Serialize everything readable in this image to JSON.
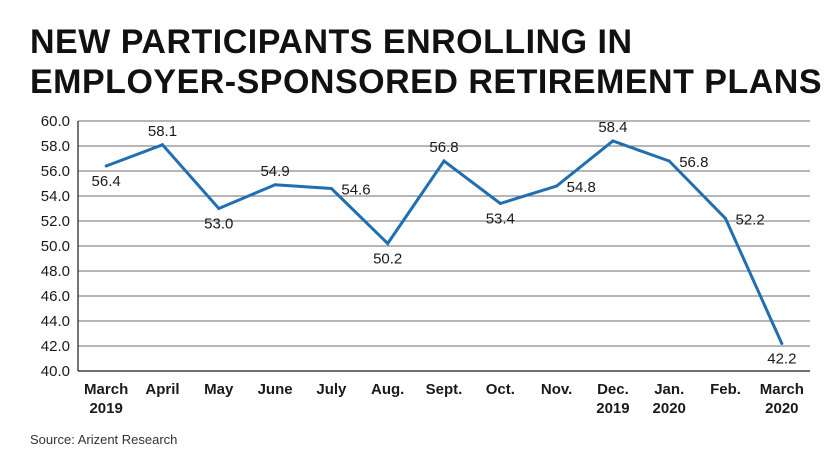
{
  "chart_data": {
    "type": "line",
    "title_lines": [
      "NEW PARTICIPANTS ENROLLING IN",
      "EMPLOYER-SPONSORED RETIREMENT PLANS"
    ],
    "categories": [
      [
        "March",
        "2019"
      ],
      [
        "April"
      ],
      [
        "May"
      ],
      [
        "June"
      ],
      [
        "July"
      ],
      [
        "Aug."
      ],
      [
        "Sept."
      ],
      [
        "Oct."
      ],
      [
        "Nov."
      ],
      [
        "Dec.",
        "2019"
      ],
      [
        "Jan.",
        "2020"
      ],
      [
        "Feb."
      ],
      [
        "March",
        "2020"
      ]
    ],
    "values": [
      56.4,
      58.1,
      53.0,
      54.9,
      54.6,
      50.2,
      56.8,
      53.4,
      54.8,
      58.4,
      56.8,
      52.2,
      42.2
    ],
    "value_labels": [
      "56.4",
      "58.1",
      "53.0",
      "54.9",
      "54.6",
      "50.2",
      "56.8",
      "53.4",
      "54.8",
      "58.4",
      "56.8",
      "52.2",
      "42.2"
    ],
    "label_positions": [
      "below",
      "above",
      "below",
      "above",
      "right",
      "below",
      "above",
      "below",
      "right",
      "above",
      "right",
      "right",
      "below"
    ],
    "yticks": [
      "40.0",
      "42.0",
      "44.0",
      "46.0",
      "48.0",
      "50.0",
      "52.0",
      "54.0",
      "56.0",
      "58.0",
      "60.0"
    ],
    "ylim": [
      40,
      60
    ],
    "grid": true,
    "line_color": "#1f6fb2",
    "source": "Source: Arizent Research"
  }
}
